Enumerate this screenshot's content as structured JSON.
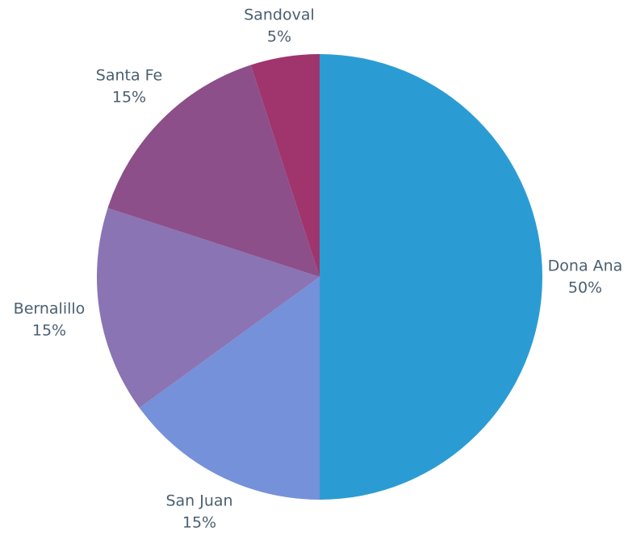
{
  "chart_data": {
    "type": "pie",
    "categories": [
      "Dona Ana",
      "San Juan",
      "Bernalillo",
      "Santa Fe",
      "Sandoval"
    ],
    "values": [
      50,
      15,
      15,
      15,
      5
    ],
    "value_labels": [
      "50%",
      "15%",
      "15%",
      "15%",
      "5%"
    ],
    "colors": [
      "#2b9cd3",
      "#7591d9",
      "#8a74b4",
      "#8c4f8a",
      "#9f356c"
    ]
  }
}
